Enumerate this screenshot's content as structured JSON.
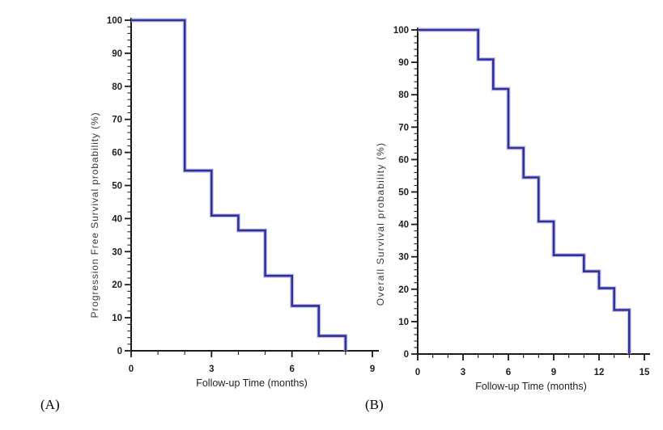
{
  "figure": {
    "background": "#ffffff",
    "curve_color": "#31319e",
    "curve_halo_color": "#b6b6e0",
    "axis_color": "#1a1a1a"
  },
  "chart_data": [
    {
      "type": "line",
      "subtype": "kaplan-meier-step",
      "panel_label": "(A)",
      "title": "",
      "xlabel": "Follow-up Time (months)",
      "ylabel": "Progression Free Survival probability (%)",
      "xlim": [
        0,
        9
      ],
      "ylim": [
        0,
        100
      ],
      "x_major_ticks": [
        0,
        3,
        6,
        9
      ],
      "x_minor_step": 1,
      "y_major_step": 10,
      "y_minor_step": 2,
      "y_tick_labels": [
        0,
        10,
        20,
        30,
        40,
        50,
        60,
        70,
        80,
        90,
        100
      ],
      "grid": false,
      "legend": false,
      "series": [
        {
          "name": "Progression Free Survival",
          "x_months": [
            0,
            2,
            3,
            4,
            5,
            6,
            7,
            8
          ],
          "survival_pct": [
            100,
            54.5,
            40.9,
            36.4,
            22.7,
            13.6,
            4.5,
            0
          ]
        }
      ]
    },
    {
      "type": "line",
      "subtype": "kaplan-meier-step",
      "panel_label": "(B)",
      "title": "",
      "xlabel": "Follow-up Time (months)",
      "ylabel": "Overall Survival probability (%)",
      "xlim": [
        0,
        15
      ],
      "ylim": [
        0,
        100
      ],
      "x_major_ticks": [
        0,
        3,
        6,
        9,
        12,
        15
      ],
      "x_minor_step": 1,
      "y_major_step": 10,
      "y_minor_step": 2,
      "y_tick_labels": [
        0,
        10,
        20,
        30,
        40,
        50,
        60,
        70,
        80,
        90,
        100
      ],
      "grid": false,
      "legend": false,
      "series": [
        {
          "name": "Overall Survival",
          "x_months": [
            0,
            4,
            5,
            6,
            7,
            8,
            9,
            11,
            12,
            13,
            14
          ],
          "survival_pct": [
            100,
            90.9,
            81.8,
            63.6,
            54.5,
            40.9,
            30.5,
            25.5,
            20.3,
            13.6,
            0
          ]
        }
      ]
    }
  ]
}
